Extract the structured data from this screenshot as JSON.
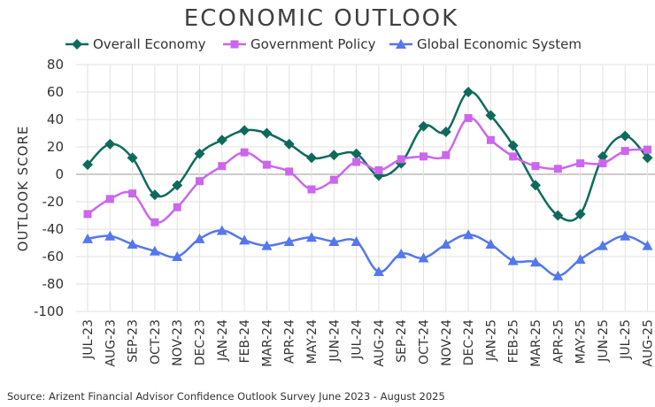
{
  "chart_data": {
    "type": "line",
    "title": "ECONOMIC OUTLOOK",
    "ylabel": "OUTLOOK SCORE",
    "xlabel": "",
    "ylim": [
      -100,
      80
    ],
    "yticks": [
      80,
      60,
      40,
      20,
      0,
      -20,
      -40,
      -60,
      -80,
      -100
    ],
    "grid": true,
    "legend_position": "top",
    "categories": [
      "JUL-23",
      "AUG-23",
      "SEP-23",
      "OCT-23",
      "NOV-23",
      "DEC-23",
      "JAN-24",
      "FEB-24",
      "MAR-24",
      "APR-24",
      "MAY-24",
      "JUN-24",
      "JUL-24",
      "AUG-24",
      "SEP-24",
      "OCT-24",
      "NOV-24",
      "DEC-24",
      "JAN-25",
      "FEB-25",
      "MAR-25",
      "APR-25",
      "MAY-25",
      "JUN-25",
      "JUL-25",
      "AUG-25"
    ],
    "series": [
      {
        "name": "Overall Economy",
        "color": "#0e6b5c",
        "marker": "diamond",
        "values": [
          7,
          22,
          12,
          -15,
          -8,
          15,
          25,
          32,
          30,
          22,
          12,
          14,
          15,
          -1,
          8,
          35,
          31,
          60,
          43,
          21,
          -8,
          -30,
          -29,
          13,
          28,
          12
        ]
      },
      {
        "name": "Government Policy",
        "color": "#cc66ee",
        "marker": "square",
        "values": [
          -29,
          -18,
          -14,
          -35,
          -24,
          -5,
          6,
          16,
          7,
          2,
          -11,
          -4,
          9,
          3,
          11,
          13,
          14,
          41,
          25,
          13,
          6,
          4,
          8,
          8,
          17,
          18
        ]
      },
      {
        "name": "Global Economic System",
        "color": "#5577ee",
        "marker": "triangle",
        "values": [
          -47,
          -45,
          -51,
          -56,
          -60,
          -47,
          -41,
          -48,
          -52,
          -49,
          -46,
          -49,
          -49,
          -71,
          -58,
          -61,
          -51,
          -44,
          -51,
          -63,
          -64,
          -74,
          -62,
          -52,
          -45,
          -52
        ]
      }
    ],
    "source": "Source: Arizent Financial Advisor Confidence Outlook Survey June 2023 - August 2025"
  }
}
